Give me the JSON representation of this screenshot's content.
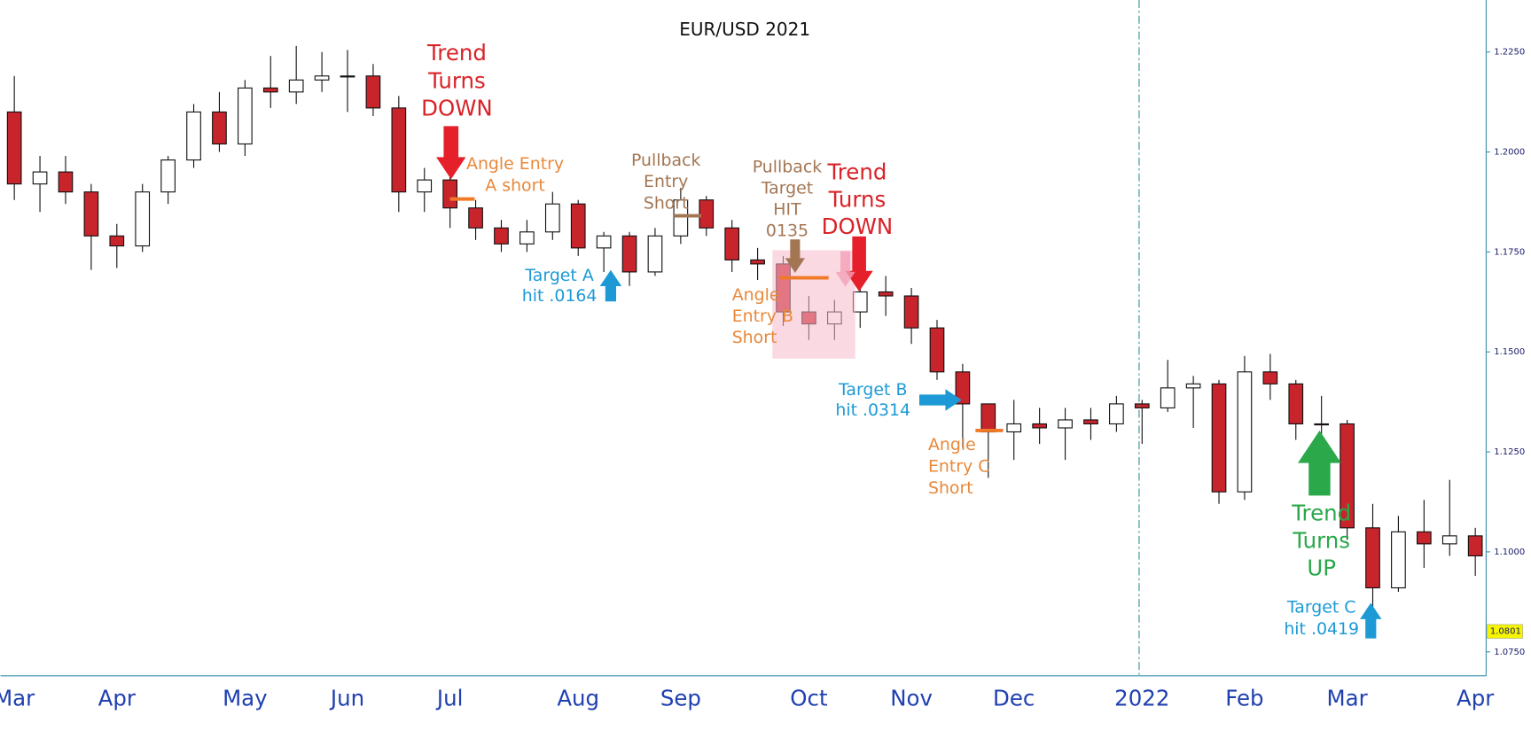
{
  "chart_data": {
    "type": "candlestick",
    "title": "EUR/USD 2021",
    "categories": [
      "Mar",
      null,
      null,
      null,
      "Apr",
      null,
      null,
      null,
      null,
      "May",
      null,
      null,
      null,
      "Jun",
      null,
      null,
      null,
      "Jul",
      null,
      null,
      null,
      null,
      "Aug",
      null,
      null,
      null,
      "Sep",
      null,
      null,
      null,
      null,
      "Oct",
      null,
      null,
      null,
      "Nov",
      null,
      null,
      null,
      "Dec",
      null,
      null,
      null,
      null,
      "2022",
      null,
      null,
      null,
      "Feb",
      null,
      null,
      null,
      "Mar",
      null,
      null,
      null,
      null,
      "Apr"
    ],
    "open": [
      1.21,
      1.192,
      1.195,
      1.19,
      1.179,
      1.1765,
      1.19,
      1.198,
      1.21,
      1.202,
      1.216,
      1.215,
      1.218,
      1.219,
      1.219,
      1.211,
      1.19,
      1.193,
      1.186,
      1.181,
      1.177,
      1.18,
      1.187,
      1.176,
      1.179,
      1.17,
      1.179,
      1.188,
      1.181,
      1.173,
      1.172,
      1.16,
      1.157,
      1.16,
      1.165,
      1.164,
      1.156,
      1.145,
      1.137,
      1.13,
      1.132,
      1.131,
      1.133,
      1.132,
      1.137,
      1.136,
      1.141,
      1.142,
      1.115,
      1.145,
      1.142,
      1.132,
      1.132,
      1.106,
      1.091,
      1.105,
      1.102,
      1.104
    ],
    "high": [
      1.219,
      1.199,
      1.199,
      1.192,
      1.182,
      1.192,
      1.199,
      1.212,
      1.215,
      1.218,
      1.224,
      1.2265,
      1.225,
      1.2255,
      1.222,
      1.214,
      1.196,
      1.194,
      1.188,
      1.183,
      1.183,
      1.19,
      1.188,
      1.18,
      1.18,
      1.181,
      1.191,
      1.189,
      1.183,
      1.176,
      1.174,
      1.164,
      1.163,
      1.167,
      1.169,
      1.166,
      1.158,
      1.147,
      1.137,
      1.138,
      1.136,
      1.136,
      1.136,
      1.139,
      1.138,
      1.148,
      1.144,
      1.143,
      1.149,
      1.1495,
      1.143,
      1.139,
      1.133,
      1.112,
      1.109,
      1.113,
      1.118,
      1.106
    ],
    "low": [
      1.188,
      1.185,
      1.187,
      1.1705,
      1.171,
      1.175,
      1.187,
      1.196,
      1.2,
      1.199,
      1.211,
      1.212,
      1.215,
      1.21,
      1.209,
      1.185,
      1.185,
      1.181,
      1.178,
      1.175,
      1.175,
      1.178,
      1.174,
      1.17,
      1.1665,
      1.169,
      1.177,
      1.179,
      1.17,
      1.168,
      1.1565,
      1.153,
      1.153,
      1.156,
      1.159,
      1.152,
      1.143,
      1.126,
      1.1185,
      1.123,
      1.127,
      1.123,
      1.128,
      1.13,
      1.127,
      1.135,
      1.131,
      1.112,
      1.113,
      1.138,
      1.128,
      1.127,
      1.103,
      1.0805,
      1.09,
      1.096,
      1.099,
      1.094
    ],
    "close": [
      1.192,
      1.195,
      1.19,
      1.179,
      1.1765,
      1.19,
      1.198,
      1.21,
      1.202,
      1.216,
      1.215,
      1.218,
      1.219,
      1.219,
      1.211,
      1.19,
      1.193,
      1.186,
      1.181,
      1.177,
      1.18,
      1.187,
      1.176,
      1.179,
      1.17,
      1.179,
      1.188,
      1.181,
      1.173,
      1.172,
      1.16,
      1.157,
      1.16,
      1.165,
      1.164,
      1.156,
      1.145,
      1.137,
      1.13,
      1.132,
      1.131,
      1.133,
      1.132,
      1.137,
      1.136,
      1.141,
      1.142,
      1.115,
      1.145,
      1.142,
      1.132,
      1.132,
      1.106,
      1.091,
      1.105,
      1.102,
      1.104,
      1.099
    ],
    "up_color": "#ffffff",
    "down_color": "#c8242b",
    "ylim": [
      1.069,
      1.238
    ],
    "yticks": [
      {
        "value": 1.075,
        "label": "1.0750"
      },
      {
        "value": 1.1,
        "label": "1.1000"
      },
      {
        "value": 1.125,
        "label": "1.1250"
      },
      {
        "value": 1.15,
        "label": "1.1500"
      },
      {
        "value": 1.175,
        "label": "1.1750"
      },
      {
        "value": 1.2,
        "label": "1.2000"
      },
      {
        "value": 1.225,
        "label": "1.2250"
      }
    ],
    "last_price": {
      "value": 1.0801,
      "label": "1.0801"
    },
    "annotations": [
      {
        "lines": [
          "Trend",
          "Turns",
          "DOWN"
        ],
        "color": "#d92328"
      },
      {
        "lines": [
          "Angle Entry",
          "A short"
        ],
        "color": "#e8883a"
      },
      {
        "lines": [
          "Pullback",
          "Entry",
          "Short"
        ],
        "color": "#a37653"
      },
      {
        "lines": [
          "Pullback",
          "Target",
          "HIT",
          "0135"
        ],
        "color": "#a37653"
      },
      {
        "lines": [
          "Trend",
          "Turns",
          "DOWN"
        ],
        "color": "#d92328"
      },
      {
        "lines": [
          "Target A",
          "hit .0164"
        ],
        "color": "#1d9ad6"
      },
      {
        "lines": [
          "Angle",
          "Entry B",
          "Short"
        ],
        "color": "#e8883a"
      },
      {
        "lines": [
          "Target B",
          "hit .0314"
        ],
        "color": "#1d9ad6"
      },
      {
        "lines": [
          "Angle",
          "Entry C",
          "Short"
        ],
        "color": "#e8883a"
      },
      {
        "lines": [
          "Trend",
          "Turns",
          "UP"
        ],
        "color": "#2aa84a"
      },
      {
        "lines": [
          "Target C",
          "hit .0419"
        ],
        "color": "#1d9ad6"
      }
    ]
  }
}
